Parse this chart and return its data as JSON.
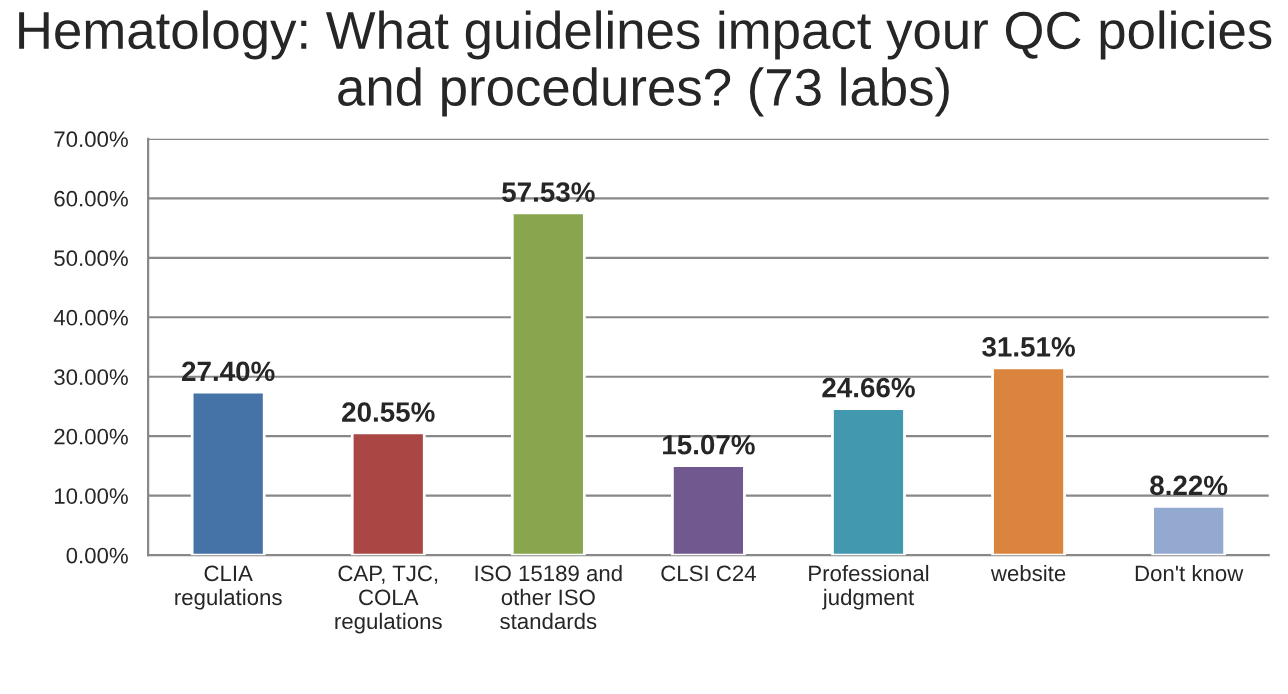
{
  "chart_data": {
    "type": "bar",
    "title": "Hematology: What guidelines impact your QC policies and procedures? (73 labs)",
    "categories": [
      "CLIA\nregulations",
      "CAP, TJC,\nCOLA\nregulations",
      "ISO 15189 and\nother ISO\nstandards",
      "CLSI C24",
      "Professional\njudgment",
      "website",
      "Don't know"
    ],
    "values": [
      27.4,
      20.55,
      57.53,
      15.07,
      24.66,
      31.51,
      8.22
    ],
    "colors": [
      "#4572a7",
      "#aa4643",
      "#89a54e",
      "#71588f",
      "#4198af",
      "#db843d",
      "#93a9cf"
    ],
    "value_labels": [
      "27.40%",
      "20.55%",
      "57.53%",
      "15.07%",
      "24.66%",
      "31.51%",
      "8.22%"
    ],
    "ylim": [
      0,
      70
    ],
    "yticks": [
      {
        "value": 0,
        "label": "0.00%"
      },
      {
        "value": 10,
        "label": "10.00%"
      },
      {
        "value": 20,
        "label": "20.00%"
      },
      {
        "value": 30,
        "label": "30.00%"
      },
      {
        "value": 40,
        "label": "40.00%"
      },
      {
        "value": 50,
        "label": "50.00%"
      },
      {
        "value": 60,
        "label": "60.00%"
      },
      {
        "value": 70,
        "label": "70.00%"
      }
    ],
    "grid": "y",
    "legend": false
  }
}
